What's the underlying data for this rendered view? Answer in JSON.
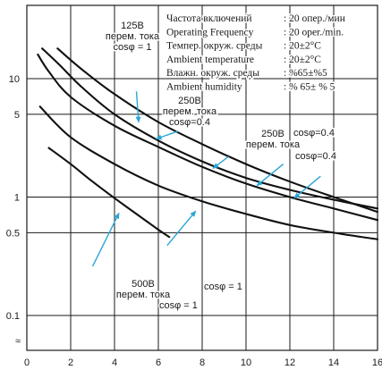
{
  "chart_data": {
    "type": "line",
    "xlim": [
      0,
      16
    ],
    "ylim": [
      0.1,
      20
    ],
    "y_scale": "log",
    "grid": true,
    "x_ticks": [
      "0",
      "2",
      "4",
      "6",
      "8",
      "10",
      "12",
      "14",
      "16"
    ],
    "y_ticks": [
      {
        "value": 0.1,
        "label": "0.1"
      },
      {
        "value": 0.5,
        "label": "0.5"
      },
      {
        "value": 1,
        "label": "1"
      },
      {
        "value": 5,
        "label": "5"
      },
      {
        "value": 10,
        "label": "10"
      }
    ],
    "axis_break_symbol": "≈",
    "specs": [
      {
        "label": "Частота включений",
        "value": ": 20 опер./мин"
      },
      {
        "label": "Operating Frequency",
        "value": ": 20 oper./min."
      },
      {
        "label": "Темпер. окруж. среды",
        "value": ": 20±2°C"
      },
      {
        "label": "Ambient temperature",
        "value": ": 20±2°C"
      },
      {
        "label": "Влажн. окруж. среды",
        "value": ": %65±%5"
      },
      {
        "label": "Ambient humidity",
        "value": ": % 65± % 5"
      }
    ],
    "series": [
      {
        "x": [
          0.7,
          1.5,
          2.5,
          4,
          6,
          8,
          10,
          12,
          14,
          16
        ],
        "y": [
          18,
          13,
          8.5,
          5,
          3.0,
          2.0,
          1.45,
          1.15,
          0.95,
          0.8
        ]
      },
      {
        "x": [
          1.4,
          2.5,
          4,
          6,
          8,
          10,
          12,
          14,
          16
        ],
        "y": [
          18,
          12,
          7.4,
          4.3,
          2.8,
          1.9,
          1.35,
          1.0,
          0.75
        ]
      },
      {
        "x": [
          0.5,
          1,
          2,
          4,
          6,
          8,
          10,
          12,
          14,
          16
        ],
        "y": [
          16,
          11.5,
          7.0,
          4.0,
          2.65,
          1.8,
          1.3,
          1.0,
          0.8,
          0.64
        ]
      },
      {
        "x": [
          0.6,
          2,
          4,
          6,
          8,
          10,
          12,
          14,
          16
        ],
        "y": [
          5.8,
          3.2,
          1.9,
          1.25,
          0.92,
          0.72,
          0.58,
          0.5,
          0.44
        ]
      },
      {
        "x": [
          1.0,
          2,
          3,
          4,
          5,
          6,
          6.5
        ],
        "y": [
          2.6,
          1.9,
          1.35,
          0.98,
          0.72,
          0.53,
          0.46
        ]
      }
    ],
    "labels": [
      {
        "lines": [
          "125В",
          "перем. тока",
          "cosφ = 1"
        ]
      },
      {
        "lines": [
          "250В",
          "перем. тока",
          "cosφ=0.4"
        ]
      },
      {
        "lines": [
          "250В",
          "перем. тока"
        ]
      },
      {
        "lines": [
          "cosφ=0.4"
        ]
      },
      {
        "lines": [
          "cosφ=0.4"
        ]
      },
      {
        "lines": [
          "500В",
          "перем. тока"
        ]
      },
      {
        "lines": [
          "cosφ = 1"
        ]
      },
      {
        "lines": [
          "cosφ = 1"
        ]
      }
    ],
    "arrows": [
      {
        "from": [
          5.0,
          7.8
        ],
        "to": [
          5.1,
          4.3
        ]
      },
      {
        "from": [
          6.9,
          3.6
        ],
        "to": [
          5.9,
          3.1
        ]
      },
      {
        "from": [
          9.2,
          2.2
        ],
        "to": [
          8.5,
          1.75
        ]
      },
      {
        "from": [
          11.7,
          1.9
        ],
        "to": [
          10.5,
          1.25
        ]
      },
      {
        "from": [
          13.4,
          1.5
        ],
        "to": [
          12.2,
          0.98
        ]
      },
      {
        "from": [
          3.0,
          0.26
        ],
        "to": [
          4.2,
          0.73
        ]
      },
      {
        "from": [
          6.4,
          0.39
        ],
        "to": [
          7.7,
          0.76
        ]
      }
    ]
  }
}
